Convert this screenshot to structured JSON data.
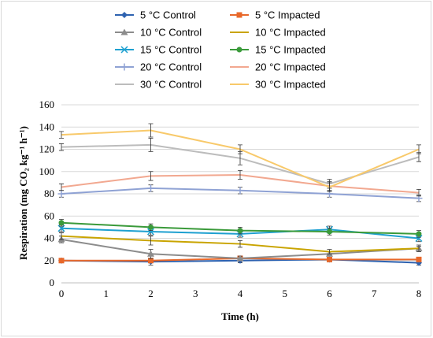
{
  "chart_data": {
    "type": "line",
    "title": "",
    "xlabel": "Time (h)",
    "ylabel": "Respiration (mg CO₂ kg⁻¹ h⁻¹)",
    "xlim": [
      0,
      8
    ],
    "ylim": [
      0,
      160
    ],
    "x_ticks": [
      0,
      1,
      2,
      3,
      4,
      5,
      6,
      7,
      8
    ],
    "y_ticks": [
      0,
      20,
      40,
      60,
      80,
      100,
      120,
      140,
      160
    ],
    "grid": "horizontal",
    "legend_position": "top",
    "x": [
      0,
      2,
      4,
      6,
      8
    ],
    "series": [
      {
        "name": "5 °C Control",
        "color": "#2e62b0",
        "marker": "diamond",
        "values": [
          20,
          19,
          20,
          21,
          18
        ],
        "err": [
          2,
          3,
          2,
          2,
          2
        ]
      },
      {
        "name": "5 °C Impacted",
        "color": "#e8682a",
        "marker": "square",
        "values": [
          20,
          20,
          22,
          21,
          21
        ],
        "err": [
          2,
          2,
          2,
          2,
          2
        ]
      },
      {
        "name": "10 °C Control",
        "color": "#8c8c8c",
        "marker": "triangle",
        "values": [
          39,
          26,
          22,
          26,
          31
        ],
        "err": [
          3,
          4,
          2,
          2,
          2
        ]
      },
      {
        "name": "10 °C Impacted",
        "color": "#c9a400",
        "marker": "none",
        "values": [
          42,
          38,
          35,
          28,
          31
        ],
        "err": [
          3,
          4,
          3,
          2,
          3
        ]
      },
      {
        "name": "15 °C Control",
        "color": "#1ea0d0",
        "marker": "x",
        "values": [
          49,
          46,
          44,
          48,
          40
        ],
        "err": [
          3,
          3,
          3,
          3,
          3
        ]
      },
      {
        "name": "15 °C Impacted",
        "color": "#3a9a3a",
        "marker": "circle",
        "values": [
          54,
          50,
          47,
          46,
          44
        ],
        "err": [
          3,
          3,
          3,
          3,
          3
        ]
      },
      {
        "name": "20 °C Control",
        "color": "#8fa2d4",
        "marker": "plus",
        "values": [
          80,
          85,
          83,
          80,
          76
        ],
        "err": [
          3,
          3,
          3,
          3,
          3
        ]
      },
      {
        "name": "20 °C Impacted",
        "color": "#f2a890",
        "marker": "none",
        "values": [
          86,
          96,
          97,
          87,
          81
        ],
        "err": [
          3,
          4,
          4,
          4,
          3
        ]
      },
      {
        "name": "30 °C Control",
        "color": "#bcbcbc",
        "marker": "none",
        "values": [
          122,
          124,
          112,
          89,
          113
        ],
        "err": [
          3,
          6,
          6,
          4,
          4
        ]
      },
      {
        "name": "30 °C Impacted",
        "color": "#f8c96a",
        "marker": "none",
        "values": [
          133,
          137,
          120,
          86,
          120
        ],
        "err": [
          3,
          6,
          4,
          4,
          4
        ]
      }
    ]
  }
}
